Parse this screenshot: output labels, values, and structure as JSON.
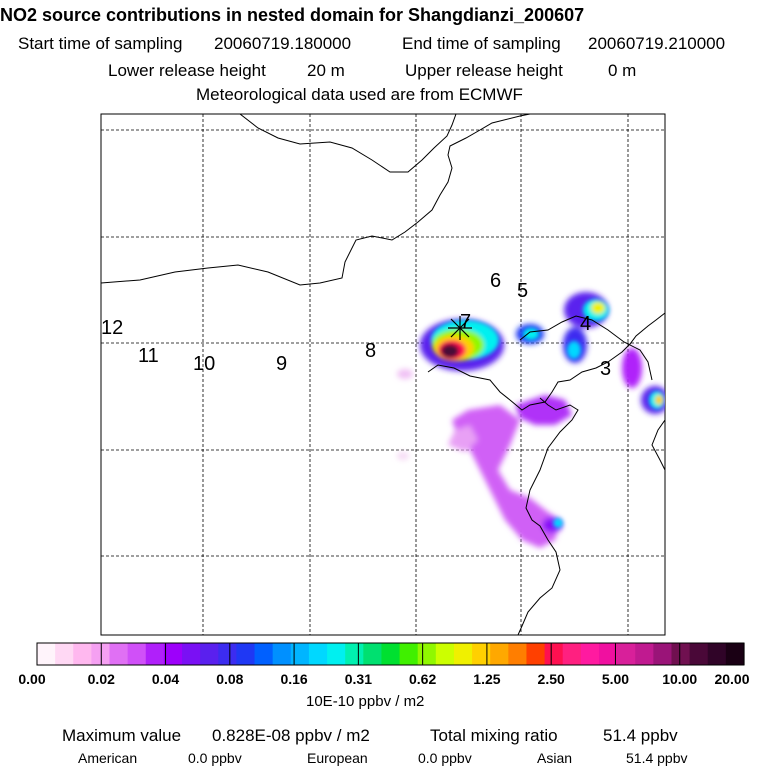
{
  "header": {
    "title": "NO2 source contributions in nested domain for Shangdianzi_200607",
    "start_label": "Start time of sampling",
    "start_value": "20060719.180000",
    "end_label": "End time of sampling",
    "end_value": "20060719.210000",
    "lower_label": "Lower release height",
    "lower_value": "20 m",
    "upper_label": "Upper release height",
    "upper_value": "0 m",
    "met_line": "Meteorological data used are from ECMWF"
  },
  "map": {
    "trajectory_labels": [
      "12",
      "11",
      "10",
      "9",
      "8",
      "7",
      "6",
      "5",
      "4",
      "3"
    ],
    "receptor_marker": "star",
    "grid": "dashed"
  },
  "colorbar": {
    "tick_labels": [
      "0.00",
      "0.02",
      "0.04",
      "0.08",
      "0.16",
      "0.31",
      "0.62",
      "1.25",
      "2.50",
      "5.00",
      "10.00",
      "20.00"
    ],
    "colors": [
      "#fff4fb",
      "#ffd8f4",
      "#ffb8ef",
      "#f5a0f2",
      "#e070f4",
      "#d050f8",
      "#b020fa",
      "#9d00fb",
      "#7a10f4",
      "#5a20ee",
      "#3c2cf0",
      "#1f38f4",
      "#0060ff",
      "#0090ff",
      "#00b5ff",
      "#00d8ff",
      "#00f0f0",
      "#00f0b0",
      "#00e070",
      "#00e030",
      "#40f000",
      "#90f800",
      "#ccff00",
      "#f0f000",
      "#ffd000",
      "#ffa800",
      "#ff7e00",
      "#ff4000",
      "#ff1050",
      "#ff2080",
      "#ff1aa0",
      "#f010a0",
      "#d8209a",
      "#c01a90",
      "#9a1478",
      "#701050",
      "#4a0838",
      "#300428",
      "#1a0014"
    ],
    "units": "10E-10 ppbv / m2"
  },
  "footer": {
    "max_label": "Maximum value",
    "max_value": "0.828E-08 ppbv / m2",
    "total_label": "Total mixing ratio",
    "total_value": "51.4 ppbv",
    "regions": [
      {
        "name": "American",
        "value": "0.0 ppbv"
      },
      {
        "name": "European",
        "value": "0.0 ppbv"
      },
      {
        "name": "Asian",
        "value": "51.4 ppbv"
      }
    ]
  }
}
